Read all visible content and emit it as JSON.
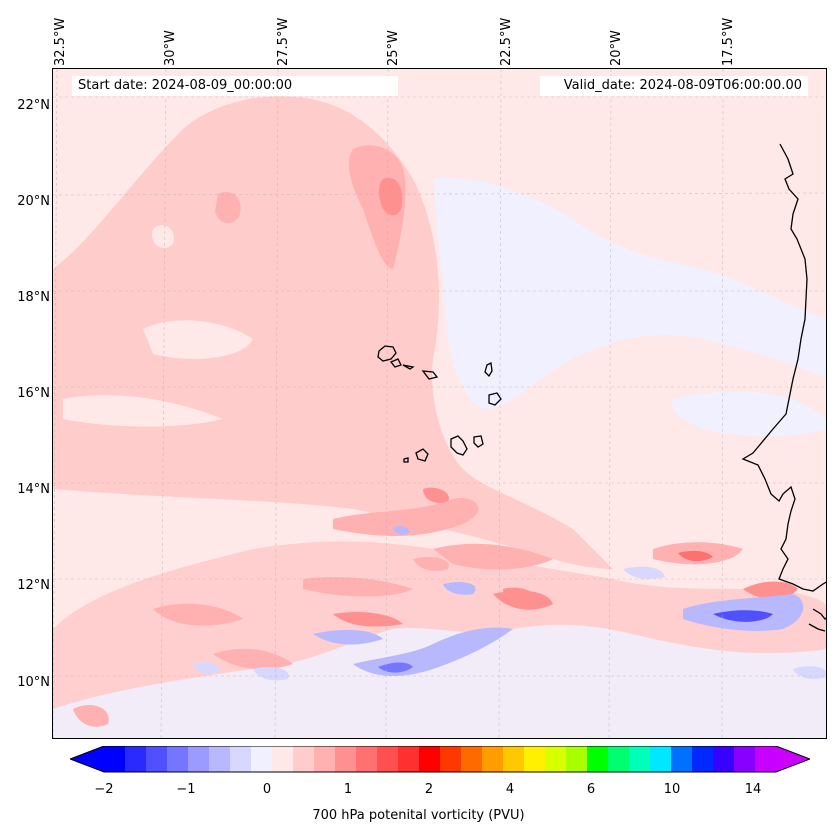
{
  "map": {
    "start_date": "Start date: 2024-08-09_00:00:00",
    "valid_date": "Valid_date: 2024-08-09T06:00:00.00",
    "lon_labels": [
      "32.5°W",
      "30°W",
      "27.5°W",
      "25°W",
      "22.5°W",
      "20°W",
      "17.5°W"
    ],
    "lat_labels": [
      "22°N",
      "20°N",
      "18°N",
      "16°N",
      "14°N",
      "12°N",
      "10°N"
    ],
    "background_color": "#ffe8e8"
  },
  "colorbar": {
    "label": "700 hPa potenital vorticity (PVU)",
    "ticks": [
      "−2",
      "−1",
      "0",
      "1",
      "2",
      "4",
      "6",
      "10",
      "14"
    ],
    "colors": [
      "#0000ff",
      "#2a2aff",
      "#5050ff",
      "#7575ff",
      "#9a9aff",
      "#b8b8ff",
      "#d8d8ff",
      "#f0f0ff",
      "#ffe8e8",
      "#ffcccc",
      "#ffb0b0",
      "#ff9090",
      "#ff7070",
      "#ff5050",
      "#ff3030",
      "#ff0000",
      "#ff3800",
      "#ff6a00",
      "#ff9c00",
      "#ffc800",
      "#ffef00",
      "#d8ff00",
      "#a8ff00",
      "#00ff00",
      "#00ff70",
      "#00ffb8",
      "#00e8ff",
      "#0070ff",
      "#0028ff",
      "#3800ff",
      "#8800ff",
      "#c800ff"
    ],
    "extend_low_color": "#0000ff",
    "extend_high_color": "#cc00ff"
  }
}
